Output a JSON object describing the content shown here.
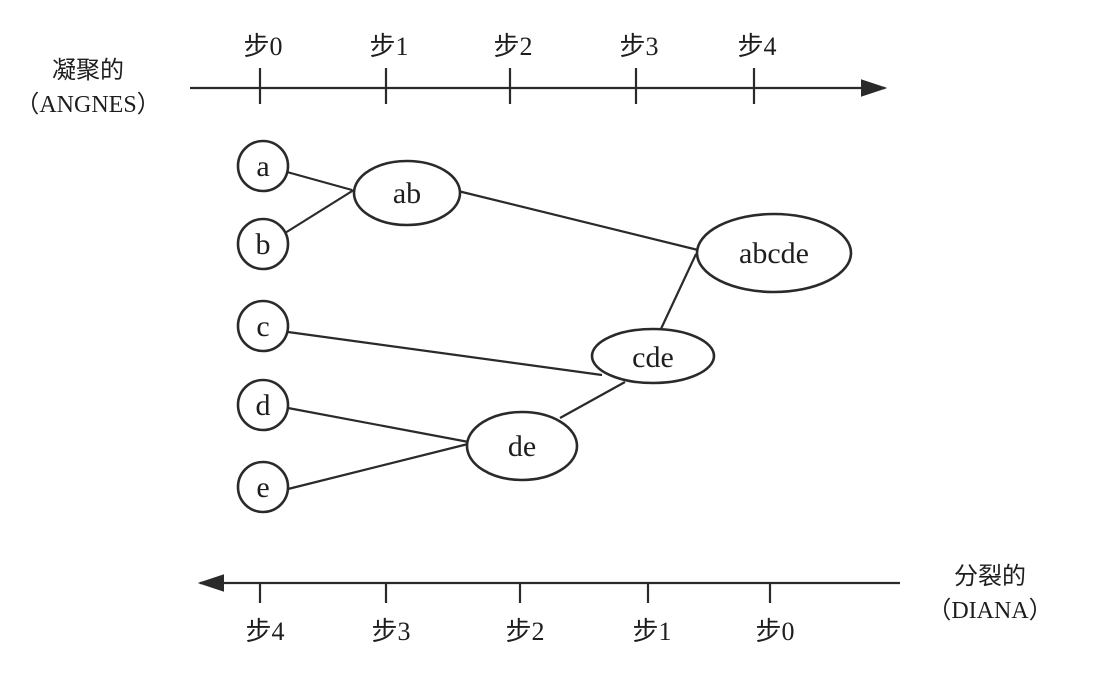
{
  "top_axis": {
    "label_line1": "凝聚的",
    "label_line2": "（ANGNES）",
    "ticks": [
      "步0",
      "步1",
      "步2",
      "步3",
      "步4"
    ]
  },
  "bottom_axis": {
    "label_line1": "分裂的",
    "label_line2": "（DIANA）",
    "ticks": [
      "步4",
      "步3",
      "步2",
      "步1",
      "步0"
    ]
  },
  "nodes": {
    "a": "a",
    "b": "b",
    "c": "c",
    "d": "d",
    "e": "e",
    "ab": "ab",
    "de": "de",
    "cde": "cde",
    "abcde": "abcde"
  }
}
